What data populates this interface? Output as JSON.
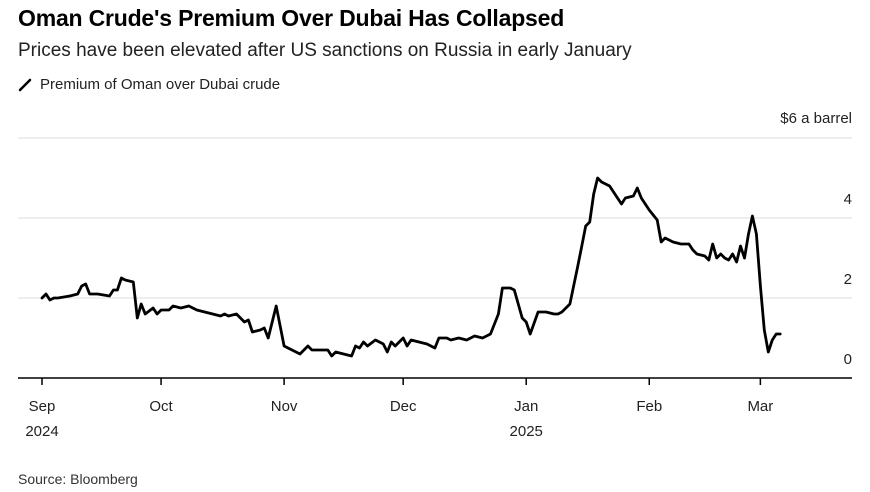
{
  "header": {
    "title": "Oman Crude's Premium Over Dubai Has Collapsed",
    "subtitle": "Prices have been elevated after US sanctions on Russia in early January",
    "source": "Source: Bloomberg"
  },
  "colors": {
    "line": "#000000",
    "grid": "#dddddd",
    "axis": "#000000"
  },
  "chart_data": {
    "type": "line",
    "title": "Oman Crude's Premium Over Dubai Has Collapsed",
    "subtitle": "Prices have been elevated after US sanctions on Russia in early January",
    "unit_label": "$6 a barrel",
    "ylim": [
      0,
      6
    ],
    "yticks": [
      0,
      2,
      4
    ],
    "grid": true,
    "legend_position": "top-left",
    "x_tick_labels": [
      {
        "date": "2024-09-01",
        "line1": "Sep",
        "line2": "2024"
      },
      {
        "date": "2024-10-01",
        "line1": "Oct",
        "line2": ""
      },
      {
        "date": "2024-11-01",
        "line1": "Nov",
        "line2": ""
      },
      {
        "date": "2024-12-01",
        "line1": "Dec",
        "line2": ""
      },
      {
        "date": "2025-01-01",
        "line1": "Jan",
        "line2": "2025"
      },
      {
        "date": "2025-02-01",
        "line1": "Feb",
        "line2": ""
      },
      {
        "date": "2025-03-01",
        "line1": "Mar",
        "line2": ""
      }
    ],
    "x_range": [
      "2024-09-01",
      "2025-03-13"
    ],
    "series": [
      {
        "name": "Premium of Oman over Dubai crude",
        "points": [
          [
            "2024-09-01",
            2.0
          ],
          [
            "2024-09-02",
            2.1
          ],
          [
            "2024-09-03",
            1.95
          ],
          [
            "2024-09-04",
            2.0
          ],
          [
            "2024-09-05",
            2.0
          ],
          [
            "2024-09-08",
            2.05
          ],
          [
            "2024-09-10",
            2.1
          ],
          [
            "2024-09-11",
            2.3
          ],
          [
            "2024-09-12",
            2.35
          ],
          [
            "2024-09-13",
            2.1
          ],
          [
            "2024-09-15",
            2.1
          ],
          [
            "2024-09-18",
            2.05
          ],
          [
            "2024-09-19",
            2.2
          ],
          [
            "2024-09-20",
            2.2
          ],
          [
            "2024-09-21",
            2.5
          ],
          [
            "2024-09-22",
            2.45
          ],
          [
            "2024-09-24",
            2.4
          ],
          [
            "2024-09-25",
            1.5
          ],
          [
            "2024-09-26",
            1.85
          ],
          [
            "2024-09-27",
            1.6
          ],
          [
            "2024-09-29",
            1.75
          ],
          [
            "2024-09-30",
            1.6
          ],
          [
            "2024-10-01",
            1.7
          ],
          [
            "2024-10-03",
            1.7
          ],
          [
            "2024-10-04",
            1.8
          ],
          [
            "2024-10-06",
            1.75
          ],
          [
            "2024-10-08",
            1.8
          ],
          [
            "2024-10-10",
            1.7
          ],
          [
            "2024-10-12",
            1.65
          ],
          [
            "2024-10-14",
            1.6
          ],
          [
            "2024-10-16",
            1.55
          ],
          [
            "2024-10-17",
            1.6
          ],
          [
            "2024-10-18",
            1.55
          ],
          [
            "2024-10-20",
            1.6
          ],
          [
            "2024-10-22",
            1.4
          ],
          [
            "2024-10-23",
            1.45
          ],
          [
            "2024-10-24",
            1.15
          ],
          [
            "2024-10-26",
            1.2
          ],
          [
            "2024-10-27",
            1.25
          ],
          [
            "2024-10-28",
            1.0
          ],
          [
            "2024-10-30",
            1.8
          ],
          [
            "2024-11-01",
            0.8
          ],
          [
            "2024-11-03",
            0.7
          ],
          [
            "2024-11-05",
            0.6
          ],
          [
            "2024-11-07",
            0.8
          ],
          [
            "2024-11-08",
            0.7
          ],
          [
            "2024-11-10",
            0.7
          ],
          [
            "2024-11-12",
            0.7
          ],
          [
            "2024-11-13",
            0.55
          ],
          [
            "2024-11-14",
            0.65
          ],
          [
            "2024-11-16",
            0.6
          ],
          [
            "2024-11-18",
            0.55
          ],
          [
            "2024-11-19",
            0.8
          ],
          [
            "2024-11-20",
            0.75
          ],
          [
            "2024-11-21",
            0.9
          ],
          [
            "2024-11-22",
            0.8
          ],
          [
            "2024-11-24",
            0.95
          ],
          [
            "2024-11-26",
            0.85
          ],
          [
            "2024-11-27",
            0.65
          ],
          [
            "2024-11-28",
            0.9
          ],
          [
            "2024-11-29",
            0.8
          ],
          [
            "2024-12-01",
            1.0
          ],
          [
            "2024-12-02",
            0.8
          ],
          [
            "2024-12-03",
            0.95
          ],
          [
            "2024-12-05",
            0.9
          ],
          [
            "2024-12-07",
            0.85
          ],
          [
            "2024-12-09",
            0.75
          ],
          [
            "2024-12-10",
            1.0
          ],
          [
            "2024-12-12",
            1.0
          ],
          [
            "2024-12-13",
            0.95
          ],
          [
            "2024-12-15",
            1.0
          ],
          [
            "2024-12-17",
            0.95
          ],
          [
            "2024-12-19",
            1.05
          ],
          [
            "2024-12-21",
            1.0
          ],
          [
            "2024-12-23",
            1.1
          ],
          [
            "2024-12-25",
            1.6
          ],
          [
            "2024-12-26",
            2.25
          ],
          [
            "2024-12-28",
            2.25
          ],
          [
            "2024-12-29",
            2.2
          ],
          [
            "2024-12-31",
            1.5
          ],
          [
            "2025-01-01",
            1.4
          ],
          [
            "2025-01-02",
            1.1
          ],
          [
            "2025-01-04",
            1.65
          ],
          [
            "2025-01-06",
            1.65
          ],
          [
            "2025-01-08",
            1.6
          ],
          [
            "2025-01-09",
            1.6
          ],
          [
            "2025-01-10",
            1.65
          ],
          [
            "2025-01-12",
            1.85
          ],
          [
            "2025-01-14",
            2.8
          ],
          [
            "2025-01-15",
            3.3
          ],
          [
            "2025-01-16",
            3.8
          ],
          [
            "2025-01-17",
            3.9
          ],
          [
            "2025-01-18",
            4.6
          ],
          [
            "2025-01-19",
            5.0
          ],
          [
            "2025-01-20",
            4.9
          ],
          [
            "2025-01-22",
            4.8
          ],
          [
            "2025-01-24",
            4.5
          ],
          [
            "2025-01-25",
            4.35
          ],
          [
            "2025-01-26",
            4.5
          ],
          [
            "2025-01-28",
            4.55
          ],
          [
            "2025-01-29",
            4.75
          ],
          [
            "2025-01-30",
            4.5
          ],
          [
            "2025-02-01",
            4.2
          ],
          [
            "2025-02-03",
            3.95
          ],
          [
            "2025-02-04",
            3.4
          ],
          [
            "2025-02-05",
            3.5
          ],
          [
            "2025-02-07",
            3.4
          ],
          [
            "2025-02-09",
            3.35
          ],
          [
            "2025-02-11",
            3.35
          ],
          [
            "2025-02-12",
            3.2
          ],
          [
            "2025-02-13",
            3.1
          ],
          [
            "2025-02-15",
            3.05
          ],
          [
            "2025-02-16",
            2.95
          ],
          [
            "2025-02-17",
            3.35
          ],
          [
            "2025-02-18",
            3.0
          ],
          [
            "2025-02-19",
            3.1
          ],
          [
            "2025-02-20",
            3.0
          ],
          [
            "2025-02-21",
            2.95
          ],
          [
            "2025-02-22",
            3.1
          ],
          [
            "2025-02-23",
            2.9
          ],
          [
            "2025-02-24",
            3.3
          ],
          [
            "2025-02-25",
            3.0
          ],
          [
            "2025-02-26",
            3.6
          ],
          [
            "2025-02-27",
            4.05
          ],
          [
            "2025-02-28",
            3.6
          ],
          [
            "2025-03-01",
            2.3
          ],
          [
            "2025-03-02",
            1.2
          ],
          [
            "2025-03-03",
            0.65
          ],
          [
            "2025-03-04",
            0.95
          ],
          [
            "2025-03-05",
            1.1
          ],
          [
            "2025-03-06",
            1.1
          ]
        ]
      }
    ]
  }
}
